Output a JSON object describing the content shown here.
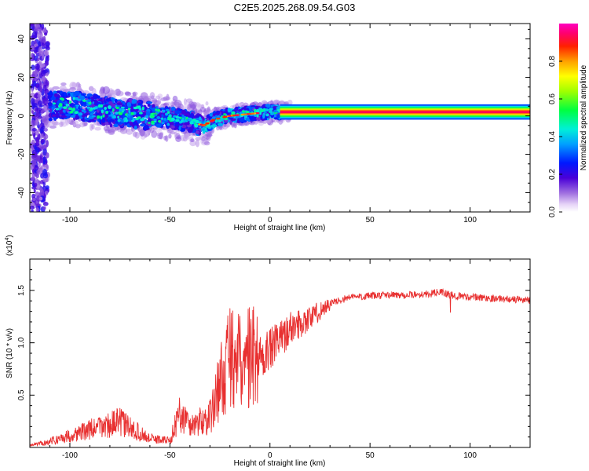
{
  "title": "C2E5.2025.268.09.54.G03",
  "chart_data": [
    {
      "type": "heatmap",
      "description_key": "spectrogram",
      "xlabel": "Height of straight line (km)",
      "ylabel": "Frequency (Hz)",
      "xlim": [
        -120,
        130
      ],
      "ylim": [
        -50,
        48
      ],
      "x_ticks": [
        -100,
        -50,
        0,
        50,
        100
      ],
      "y_ticks": [
        -40,
        -20,
        0,
        20,
        40
      ],
      "x_tick_labels": [
        "-100",
        "-50",
        "0",
        "50",
        "100"
      ],
      "y_tick_labels": [
        "-40",
        "-20",
        "0",
        "20",
        "40"
      ],
      "colorbar": {
        "label": "Normalized spectral amplitude",
        "range": [
          0,
          1
        ],
        "ticks": [
          0.0,
          0.2,
          0.4,
          0.6,
          0.8
        ],
        "tick_labels": [
          "0.0",
          "0.2",
          "0.4",
          "0.6",
          "0.8"
        ]
      },
      "ridge": {
        "x": [
          -110,
          -100,
          -90,
          -80,
          -70,
          -60,
          -50,
          -40,
          -33,
          -28,
          -20,
          -10,
          0,
          10,
          130
        ],
        "frequency": [
          5,
          6,
          4,
          2,
          1,
          0,
          -1,
          -3,
          -5,
          -2,
          0,
          1,
          2,
          2,
          2
        ]
      },
      "grid": false
    },
    {
      "type": "line",
      "xlabel": "Height of straight line (km)",
      "ylabel": "SNR (10 * v/v)",
      "y_multiplier_label": "(x10",
      "y_multiplier_exp": "4",
      "y_multiplier_close": ")",
      "xlim": [
        -120,
        130
      ],
      "ylim": [
        0,
        18000
      ],
      "x_ticks": [
        -100,
        -50,
        0,
        50,
        100
      ],
      "y_ticks": [
        5000,
        10000,
        15000
      ],
      "x_tick_labels": [
        "-100",
        "-50",
        "0",
        "50",
        "100"
      ],
      "y_tick_labels": [
        "0.5",
        "1.0",
        "1.5"
      ],
      "color": "#e83030",
      "envelope": {
        "x": [
          -120,
          -110,
          -100,
          -90,
          -80,
          -75,
          -70,
          -60,
          -50,
          -45,
          -40,
          -30,
          -25,
          -20,
          -15,
          -10,
          -5,
          0,
          5,
          10,
          20,
          30,
          40,
          50,
          60,
          70,
          80,
          85,
          90,
          95,
          100,
          110,
          120,
          130
        ],
        "snr": [
          200,
          600,
          1200,
          1800,
          2300,
          2600,
          2000,
          900,
          700,
          3500,
          2200,
          3000,
          6500,
          9000,
          8500,
          9500,
          9000,
          9500,
          10500,
          11500,
          12500,
          13800,
          14400,
          14500,
          14600,
          14600,
          14700,
          14900,
          14600,
          14500,
          14400,
          14300,
          14200,
          14100
        ]
      },
      "grid": false
    }
  ],
  "colors": {
    "line": "#e83030",
    "axis": "#000000",
    "background": "#ffffff"
  }
}
